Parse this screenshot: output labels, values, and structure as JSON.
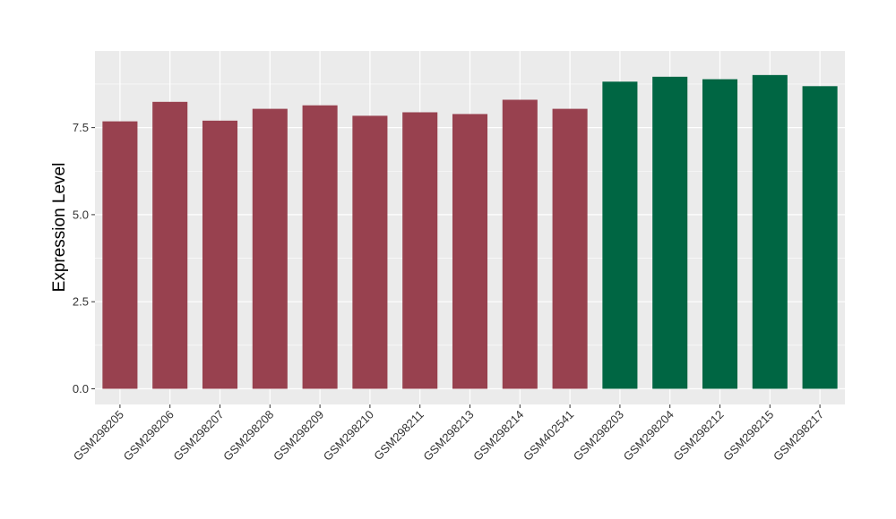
{
  "chart_data": {
    "type": "bar",
    "ylabel": "Expression Level",
    "xlabel": "",
    "ylim": [
      -0.45,
      9.7
    ],
    "yticks": [
      0.0,
      2.5,
      5.0,
      7.5
    ],
    "ytick_labels": [
      "0.0",
      "2.5",
      "5.0",
      "7.5"
    ],
    "grid": true,
    "legend": "none",
    "panel_color": "#EBEBEB",
    "grid_color": "#FFFFFF",
    "categories": [
      "GSM298205",
      "GSM298206",
      "GSM298207",
      "GSM298208",
      "GSM298209",
      "GSM298210",
      "GSM298211",
      "GSM298213",
      "GSM298214",
      "GSM402541",
      "GSM298203",
      "GSM298204",
      "GSM298212",
      "GSM298215",
      "GSM298217"
    ],
    "values": [
      7.68,
      8.24,
      7.7,
      8.04,
      8.14,
      7.84,
      7.94,
      7.89,
      8.3,
      8.04,
      8.82,
      8.96,
      8.89,
      9.01,
      8.69
    ],
    "group": [
      "a",
      "a",
      "a",
      "a",
      "a",
      "a",
      "a",
      "a",
      "a",
      "a",
      "b",
      "b",
      "b",
      "b",
      "b"
    ],
    "group_colors": {
      "a": "#98414F",
      "b": "#006643"
    }
  }
}
